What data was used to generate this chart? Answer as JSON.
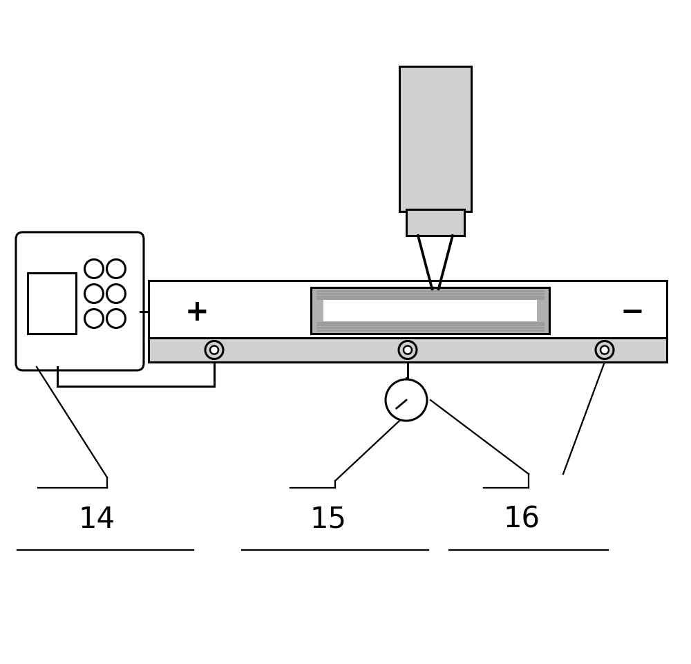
{
  "bg_color": "#ffffff",
  "line_color": "#000000",
  "gray_fill": "#c8c8c8",
  "light_gray": "#d0d0d0",
  "dark_gray": "#999999",
  "mid_gray": "#b0b0b0",
  "figsize": [
    10.0,
    9.62
  ],
  "dpi": 100,
  "label_14": "14",
  "label_15": "15",
  "label_16": "16"
}
